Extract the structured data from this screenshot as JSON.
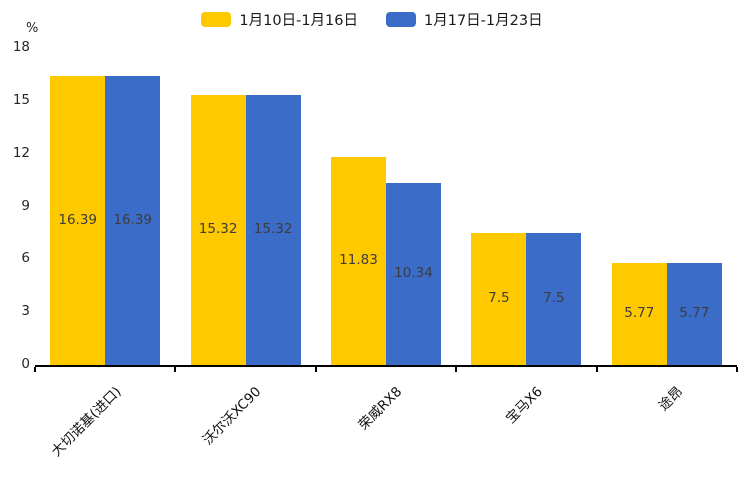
{
  "chart_data": {
    "type": "bar",
    "title": "",
    "unit_label": "%",
    "categories": [
      "大切诺基(进口)",
      "沃尔沃XC90",
      "荣威RX8",
      "宝马X6",
      "途昂"
    ],
    "series": [
      {
        "name": "1月10日-1月16日",
        "color": "#FFC900",
        "values": [
          16.39,
          15.32,
          11.83,
          7.5,
          5.77
        ]
      },
      {
        "name": "1月17日-1月23日",
        "color": "#3B6CC8",
        "values": [
          16.39,
          15.32,
          10.34,
          7.5,
          5.77
        ]
      }
    ],
    "ylim": [
      0,
      18
    ],
    "yticks": [
      0,
      3,
      6,
      9,
      12,
      15,
      18
    ],
    "legend_position": "top",
    "grid": false,
    "value_label_color": "#3D3D3D",
    "axis_color": "#000000",
    "tick_label_color": "#262626"
  }
}
